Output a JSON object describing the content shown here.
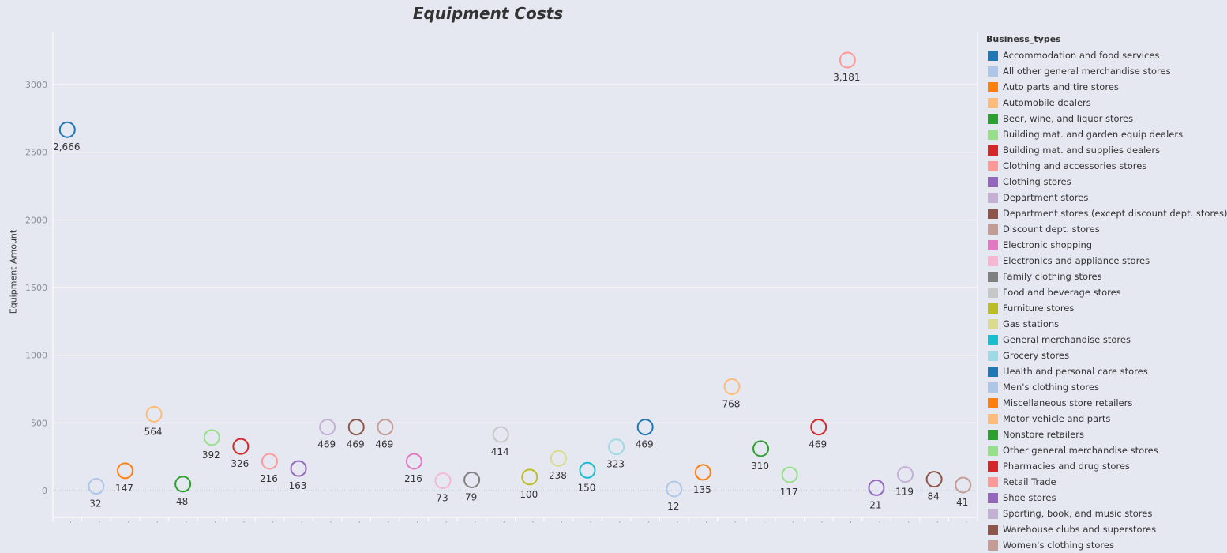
{
  "chart_data": {
    "type": "scatter",
    "title": "Equipment Costs",
    "ylabel": "Equipment Amount",
    "xlabel": "",
    "ylim": [
      -200,
      3300
    ],
    "yticks": [
      0,
      500,
      1000,
      1500,
      2000,
      2500,
      3000
    ],
    "legend_title": "Business_types",
    "legend_placement": "right",
    "grid": true,
    "categories": [
      {
        "name": "Accommodation and food services",
        "color": "#1f77b4"
      },
      {
        "name": "All other general merchandise stores",
        "color": "#aec7e8"
      },
      {
        "name": "Auto parts and tire stores",
        "color": "#ff7f0e"
      },
      {
        "name": "Automobile dealers",
        "color": "#ffbb78"
      },
      {
        "name": "Beer, wine, and liquor stores",
        "color": "#2ca02c"
      },
      {
        "name": "Building mat. and garden equip dealers",
        "color": "#98df8a"
      },
      {
        "name": "Building mat. and supplies dealers",
        "color": "#d62728"
      },
      {
        "name": "Clothing and accessories stores",
        "color": "#ff9896"
      },
      {
        "name": "Clothing stores",
        "color": "#9467bd"
      },
      {
        "name": "Department stores",
        "color": "#c5b0d5"
      },
      {
        "name": "Department stores (except discount dept. stores)",
        "color": "#8c564b"
      },
      {
        "name": "Discount dept. stores",
        "color": "#c49c94"
      },
      {
        "name": "Electronic shopping",
        "color": "#e377c2"
      },
      {
        "name": "Electronics and appliance stores",
        "color": "#f7b6d2"
      },
      {
        "name": "Family clothing stores",
        "color": "#7f7f7f"
      },
      {
        "name": "Food and beverage stores",
        "color": "#c7c7c7"
      },
      {
        "name": "Furniture stores",
        "color": "#bcbd22"
      },
      {
        "name": "Gas stations",
        "color": "#dbdb8d"
      },
      {
        "name": "General merchandise stores",
        "color": "#17becf"
      },
      {
        "name": "Grocery stores",
        "color": "#9edae5"
      },
      {
        "name": "Health and personal care stores",
        "color": "#1f77b4"
      },
      {
        "name": "Men's clothing stores",
        "color": "#aec7e8"
      },
      {
        "name": "Miscellaneous store retailers",
        "color": "#ff7f0e"
      },
      {
        "name": "Motor vehicle and parts",
        "color": "#ffbb78"
      },
      {
        "name": "Nonstore retailers",
        "color": "#2ca02c"
      },
      {
        "name": "Other general merchandise stores",
        "color": "#98df8a"
      },
      {
        "name": "Pharmacies and drug stores",
        "color": "#d62728"
      },
      {
        "name": "Retail Trade",
        "color": "#ff9896"
      },
      {
        "name": "Shoe stores",
        "color": "#9467bd"
      },
      {
        "name": "Sporting, book, and  music stores",
        "color": "#c5b0d5"
      },
      {
        "name": "Warehouse clubs and superstores",
        "color": "#8c564b"
      },
      {
        "name": "Women's clothing stores",
        "color": "#c49c94"
      }
    ],
    "values": [
      2666,
      32,
      147,
      564,
      48,
      392,
      326,
      216,
      163,
      469,
      469,
      469,
      216,
      73,
      79,
      414,
      100,
      238,
      150,
      323,
      469,
      12,
      135,
      768,
      310,
      117,
      469,
      3181,
      21,
      119,
      84,
      41
    ],
    "labels": [
      "2,666",
      "32",
      "147",
      "564",
      "48",
      "392",
      "326",
      "216",
      "163",
      "469",
      "469",
      "469",
      "216",
      "73",
      "79",
      "414",
      "100",
      "238",
      "150",
      "323",
      "469",
      "12",
      "135",
      "768",
      "310",
      "117",
      "469",
      "3,181",
      "21",
      "119",
      "84",
      "41"
    ],
    "label_position": [
      "below",
      "below",
      "below",
      "below",
      "below",
      "below",
      "below",
      "below",
      "below",
      "below",
      "below",
      "below",
      "below",
      "below",
      "below",
      "below",
      "below",
      "below",
      "below",
      "below",
      "below",
      "below",
      "below",
      "below",
      "below",
      "below",
      "below",
      "below",
      "below",
      "below",
      "below",
      "below"
    ]
  }
}
